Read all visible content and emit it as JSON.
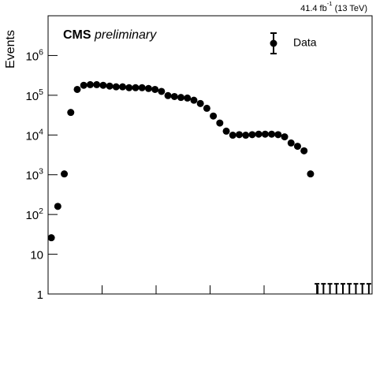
{
  "chart_data": {
    "type": "scatter",
    "title": "CMS",
    "subtitle": "preliminary",
    "lumi": "41.4 fb^-1 (13 TeV)",
    "y_label": "Events",
    "legend_label": "Data",
    "legend_position": "upper right",
    "color": "#000000",
    "log_y": true,
    "xlim": [
      0,
      6
    ],
    "xticks": [
      0,
      1,
      2,
      3,
      4,
      5,
      6
    ],
    "ylim": [
      1,
      10000000
    ],
    "yticks": [
      1,
      10,
      {
        "value": 100,
        "label": "10^2"
      },
      {
        "value": 1000,
        "label": "10^3"
      },
      {
        "value": 10000,
        "label": "10^4"
      },
      {
        "value": 100000,
        "label": "10^5"
      },
      {
        "value": 1000000,
        "label": "10^6"
      }
    ],
    "x": [
      0.06,
      0.18,
      0.3,
      0.42,
      0.54,
      0.66,
      0.78,
      0.9,
      1.02,
      1.14,
      1.26,
      1.38,
      1.5,
      1.62,
      1.74,
      1.86,
      1.98,
      2.1,
      2.22,
      2.34,
      2.46,
      2.58,
      2.7,
      2.82,
      2.94,
      3.06,
      3.18,
      3.3,
      3.42,
      3.54,
      3.66,
      3.78,
      3.9,
      4.02,
      4.14,
      4.26,
      4.38,
      4.5,
      4.62,
      4.74,
      4.86,
      4.98,
      5.1,
      5.22,
      5.34,
      5.46,
      5.58,
      5.7,
      5.82,
      5.94
    ],
    "values": [
      26,
      160,
      1050,
      37000,
      140000,
      178000,
      185000,
      185000,
      178000,
      170000,
      163000,
      163000,
      155000,
      155000,
      155000,
      148000,
      140000,
      125000,
      98000,
      93000,
      88000,
      85000,
      75000,
      62000,
      47000,
      30000,
      20000,
      12500,
      9900,
      10200,
      9900,
      10200,
      10500,
      10500,
      10500,
      10200,
      9000,
      6300,
      5200,
      4000,
      1050,
      0,
      0,
      0,
      0,
      0,
      0,
      0,
      0,
      0
    ],
    "errors_up": [
      null,
      null,
      null,
      null,
      null,
      null,
      null,
      null,
      null,
      null,
      null,
      null,
      null,
      null,
      null,
      null,
      null,
      null,
      null,
      null,
      null,
      null,
      null,
      null,
      null,
      null,
      null,
      null,
      null,
      null,
      null,
      null,
      null,
      null,
      null,
      null,
      null,
      null,
      null,
      null,
      null,
      1.8,
      1.8,
      1.8,
      1.8,
      1.8,
      1.8,
      1.8,
      1.8,
      1.8
    ]
  }
}
